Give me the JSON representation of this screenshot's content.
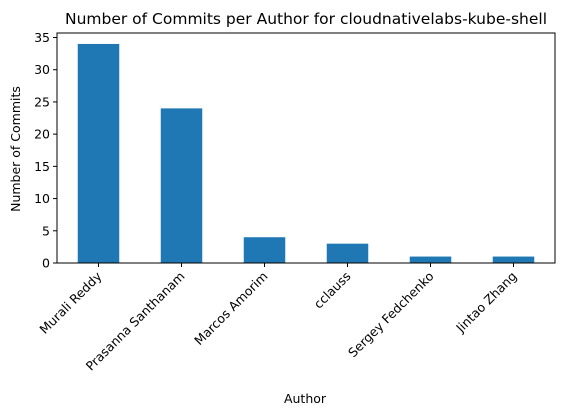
{
  "chart_data": {
    "type": "bar",
    "title": "Number of Commits per Author for cloudnativelabs-kube-shell",
    "xlabel": "Author",
    "ylabel": "Number of Commits",
    "categories": [
      "Murali Reddy",
      "Prasanna Santhanam",
      "Marcos Amorim",
      "cclauss",
      "Sergey Fedchenko",
      "Jintao Zhang"
    ],
    "values": [
      34,
      24,
      4,
      3,
      1,
      1
    ],
    "ylim": [
      0,
      35.7
    ],
    "yticks": [
      0,
      5,
      10,
      15,
      20,
      25,
      30,
      35
    ],
    "grid": false,
    "bar_color": "#1f77b4"
  }
}
